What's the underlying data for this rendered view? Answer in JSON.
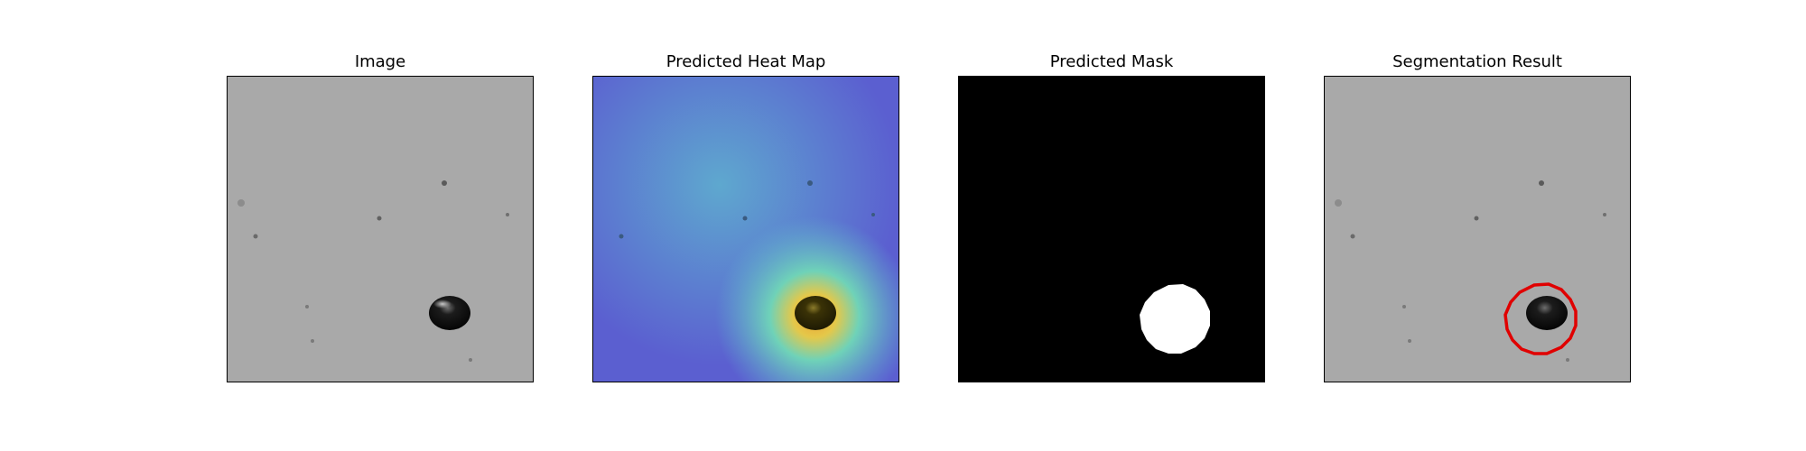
{
  "panels": [
    {
      "title": "Image"
    },
    {
      "title": "Predicted Heat Map"
    },
    {
      "title": "Predicted Mask"
    },
    {
      "title": "Segmentation Result"
    }
  ],
  "colors": {
    "background_gray": "#a7a7a7",
    "mask_fill": "#ffffff",
    "mask_background": "#000000",
    "contour": "#e00000",
    "heat_low": "#5b5fd0",
    "heat_mid": "#5fb8d0",
    "heat_high": "#e0c23a"
  }
}
